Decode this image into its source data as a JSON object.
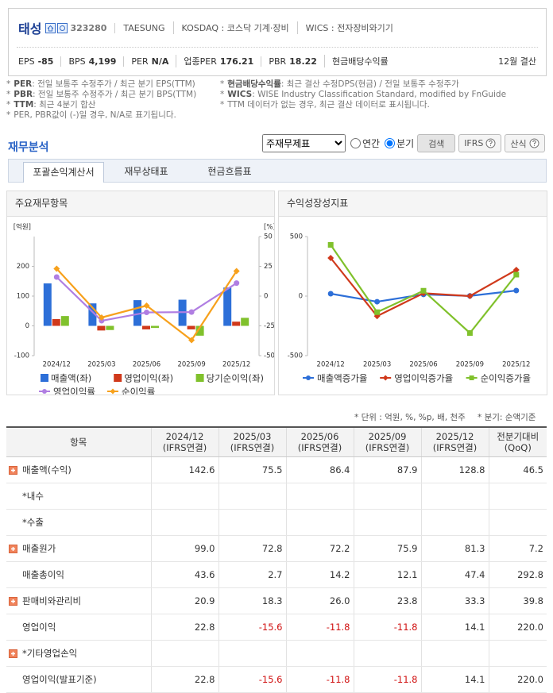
{
  "header": {
    "name": "태성",
    "code": "323280",
    "english_name": "TAESUNG",
    "market": "KOSDAQ : 코스닥 기계·장비",
    "wics": "WICS : 전자장비와기기",
    "indicators": [
      {
        "label": "EPS",
        "value": "-85"
      },
      {
        "label": "BPS",
        "value": "4,199"
      },
      {
        "label": "PER",
        "value": "N/A"
      },
      {
        "label": "업종PER",
        "value": "176.21"
      },
      {
        "label": "PBR",
        "value": "18.22"
      },
      {
        "label": "현금배당수익률"
      }
    ],
    "settlement": "12월 결산"
  },
  "notes": {
    "marker": "*",
    "left": [
      {
        "term": "PER",
        "text": ": 전일 보통주 수정주가 / 최근 분기 EPS(TTM)"
      },
      {
        "term": "PBR",
        "text": ": 전일 보통주 수정주가 / 최근 분기 BPS(TTM)"
      },
      {
        "term": "TTM",
        "text": ": 최근 4분기 합산"
      },
      {
        "text": "PER, PBR값이 (-)일 경우, N/A로 표기됩니다."
      }
    ],
    "right": [
      {
        "term": "현금배당수익률",
        "text": ": 최근 결산 수정DPS(현금) / 전일 보통주 수정주가"
      },
      {
        "term": "WICS",
        "text": ": WISE Industry Classification Standard, modified by FnGuide"
      },
      {
        "text": "TTM 데이터가 없는 경우, 최근 결산 데이터로 표시됩니다."
      }
    ]
  },
  "section": {
    "title": "재무분석",
    "statement_select": "주재무제표",
    "period_options": [
      "연간",
      "분기"
    ],
    "selected_period": 1,
    "search_button": "검색",
    "ifrs_button": "IFRS",
    "formula_button": "산식"
  },
  "tabs": {
    "items": [
      "포괄손익계산서",
      "재무상태표",
      "현금흐름표"
    ],
    "active": 0
  },
  "chart_data": [
    {
      "type": "combo",
      "title": "주요재무항목",
      "categories": [
        "2024/12",
        "2025/03",
        "2025/06",
        "2025/09",
        "2025/12"
      ],
      "y_label": "[억원]",
      "y2_label": "[%]",
      "ylim": [
        -100,
        300
      ],
      "yticks": [
        -100,
        0,
        100,
        200
      ],
      "y2lim": [
        -50,
        50
      ],
      "y2ticks": [
        -50,
        -25,
        0,
        25,
        50
      ],
      "series": [
        {
          "name": "매출액(좌)",
          "type": "bar",
          "color": "#2d6fd8",
          "values": [
            142.6,
            75.5,
            86.4,
            87.9,
            128.8
          ]
        },
        {
          "name": "영업이익(좌)",
          "type": "bar",
          "color": "#d0391b",
          "values": [
            22.8,
            -15.6,
            -11.8,
            -11.8,
            14.1
          ]
        },
        {
          "name": "당기순이익(좌)",
          "type": "bar",
          "color": "#80c12c",
          "values": [
            33,
            -14,
            -7,
            -33,
            27
          ]
        },
        {
          "name": "영업이익률",
          "type": "line",
          "axis": "y2",
          "marker": "circle",
          "color": "#b07ee2",
          "values": [
            16.0,
            -20.7,
            -13.7,
            -13.4,
            10.9
          ]
        },
        {
          "name": "순이익률",
          "type": "line",
          "axis": "y2",
          "marker": "diamond",
          "color": "#f7a11c",
          "values": [
            23,
            -18,
            -8,
            -37,
            21
          ]
        }
      ]
    },
    {
      "type": "line",
      "title": "수익성장성지표",
      "categories": [
        "2024/12",
        "2025/03",
        "2025/06",
        "2025/09",
        "2025/12"
      ],
      "ylim": [
        -500,
        500
      ],
      "yticks": [
        -500,
        0,
        500
      ],
      "series": [
        {
          "name": "매출액증가율",
          "marker": "circle",
          "color": "#2d6fd8",
          "values": [
            20,
            -47.1,
            14.4,
            1.7,
            46.5
          ]
        },
        {
          "name": "영업이익증가율",
          "marker": "diamond",
          "color": "#d0391b",
          "values": [
            320,
            -168.4,
            24.4,
            0,
            220
          ]
        },
        {
          "name": "순이익증가율",
          "marker": "square",
          "color": "#80c12c",
          "values": [
            430,
            -135,
            45,
            -310,
            180
          ]
        }
      ]
    }
  ],
  "table": {
    "unit_note": "* 단위 : 억원, %, %p, 배, 천주",
    "basis_note": "* 분기: 순액기준",
    "item_header": "항목",
    "columns": [
      {
        "period": "2024/12",
        "basis": "(IFRS연결)"
      },
      {
        "period": "2025/03",
        "basis": "(IFRS연결)"
      },
      {
        "period": "2025/06",
        "basis": "(IFRS연결)"
      },
      {
        "period": "2025/09",
        "basis": "(IFRS연결)"
      },
      {
        "period": "2025/12",
        "basis": "(IFRS연결)"
      },
      {
        "period": "전분기대비",
        "basis": "(QoQ)"
      }
    ],
    "rows": [
      {
        "label": "매출액(수익)",
        "expand": true,
        "values": [
          "142.6",
          "75.5",
          "86.4",
          "87.9",
          "128.8",
          "46.5"
        ]
      },
      {
        "label": "*내수",
        "values": [
          null,
          null,
          null,
          null,
          null,
          null
        ]
      },
      {
        "label": "*수출",
        "values": [
          null,
          null,
          null,
          null,
          null,
          null
        ]
      },
      {
        "label": "매출원가",
        "expand": true,
        "values": [
          "99.0",
          "72.8",
          "72.2",
          "75.9",
          "81.3",
          "7.2"
        ]
      },
      {
        "label": "매출총이익",
        "values": [
          "43.6",
          "2.7",
          "14.2",
          "12.1",
          "47.4",
          "292.8"
        ]
      },
      {
        "label": "판매비와관리비",
        "expand": true,
        "values": [
          "20.9",
          "18.3",
          "26.0",
          "23.8",
          "33.3",
          "39.8"
        ]
      },
      {
        "label": "영업이익",
        "values": [
          "22.8",
          "-15.6",
          "-11.8",
          "-11.8",
          "14.1",
          "220.0"
        ]
      },
      {
        "label": "*기타영업손익",
        "expand": true,
        "values": [
          null,
          null,
          null,
          null,
          null,
          null
        ]
      },
      {
        "label": "영업이익(발표기준)",
        "values": [
          "22.8",
          "-15.6",
          "-11.8",
          "-11.8",
          "14.1",
          "220.0"
        ]
      }
    ]
  }
}
